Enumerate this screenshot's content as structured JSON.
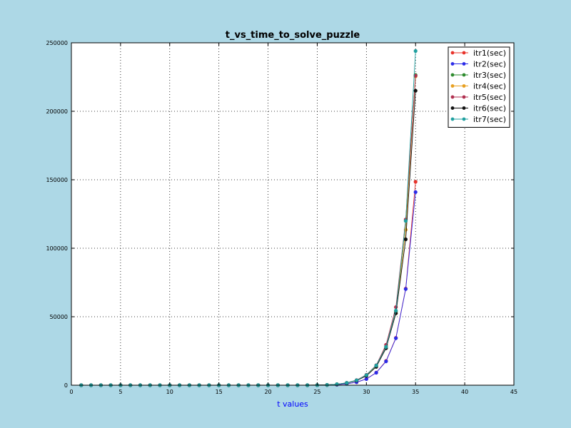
{
  "chart_data": {
    "type": "line",
    "title": "t_vs_time_to_solve_puzzle",
    "xlabel": "t values",
    "ylabel": "",
    "xlim": [
      0,
      45
    ],
    "ylim": [
      0,
      250000
    ],
    "xticks": [
      0,
      5,
      10,
      15,
      20,
      25,
      30,
      35,
      40,
      45
    ],
    "yticks": [
      0,
      50000,
      100000,
      150000,
      200000,
      250000
    ],
    "grid": true,
    "legend_position": "top-right",
    "x": [
      1,
      2,
      3,
      4,
      5,
      6,
      7,
      8,
      9,
      10,
      11,
      12,
      13,
      14,
      15,
      16,
      17,
      18,
      19,
      20,
      21,
      22,
      23,
      24,
      25,
      26,
      27,
      28,
      29,
      30,
      31,
      32,
      33,
      34,
      35
    ],
    "series": [
      {
        "name": "itr1(sec)",
        "color": "#e8332b",
        "values": [
          0,
          0,
          0,
          0,
          0,
          0,
          0,
          0,
          0,
          0,
          0,
          0,
          0,
          0,
          0,
          0,
          0,
          0,
          0,
          0,
          0,
          0,
          0,
          0,
          50,
          150,
          400,
          1000,
          2200,
          4600,
          9200,
          17700,
          34600,
          70500,
          148500
        ]
      },
      {
        "name": "itr2(sec)",
        "color": "#2b2be8",
        "values": [
          0,
          0,
          0,
          0,
          0,
          0,
          0,
          0,
          0,
          0,
          0,
          0,
          0,
          0,
          0,
          0,
          0,
          0,
          0,
          0,
          0,
          0,
          0,
          0,
          50,
          150,
          400,
          1000,
          2200,
          4500,
          9100,
          17400,
          34300,
          70200,
          141000
        ]
      },
      {
        "name": "itr3(sec)",
        "color": "#2e8b2e",
        "values": [
          0,
          0,
          0,
          0,
          0,
          0,
          0,
          0,
          0,
          0,
          0,
          0,
          0,
          0,
          0,
          0,
          0,
          0,
          0,
          0,
          0,
          0,
          0,
          0,
          60,
          200,
          700,
          1700,
          3600,
          7400,
          14200,
          28300,
          54000,
          120000,
          226500
        ]
      },
      {
        "name": "itr4(sec)",
        "color": "#e8a020",
        "values": [
          0,
          0,
          0,
          0,
          0,
          0,
          0,
          0,
          0,
          0,
          0,
          0,
          0,
          0,
          0,
          0,
          0,
          0,
          0,
          0,
          0,
          0,
          0,
          0,
          60,
          200,
          700,
          1600,
          3400,
          7000,
          13600,
          27500,
          52500,
          113500,
          225500
        ]
      },
      {
        "name": "itr5(sec)",
        "color": "#b03050",
        "values": [
          0,
          0,
          0,
          0,
          0,
          0,
          0,
          0,
          0,
          0,
          0,
          0,
          0,
          0,
          0,
          0,
          0,
          0,
          0,
          0,
          0,
          0,
          0,
          0,
          60,
          200,
          700,
          1700,
          3700,
          7600,
          14600,
          29500,
          57000,
          121000,
          226000
        ]
      },
      {
        "name": "itr6(sec)",
        "color": "#111111",
        "values": [
          0,
          0,
          0,
          0,
          0,
          0,
          0,
          0,
          0,
          0,
          0,
          0,
          0,
          0,
          0,
          0,
          0,
          0,
          0,
          0,
          0,
          0,
          0,
          0,
          60,
          200,
          650,
          1600,
          3300,
          6800,
          13400,
          27000,
          52500,
          106500,
          215000
        ]
      },
      {
        "name": "itr7(sec)",
        "color": "#20a0a0",
        "values": [
          0,
          0,
          0,
          0,
          0,
          0,
          0,
          0,
          0,
          0,
          0,
          0,
          0,
          0,
          0,
          0,
          0,
          0,
          0,
          0,
          0,
          0,
          0,
          0,
          60,
          200,
          700,
          1700,
          3600,
          7400,
          14400,
          28000,
          54500,
          120000,
          244000
        ]
      }
    ]
  }
}
